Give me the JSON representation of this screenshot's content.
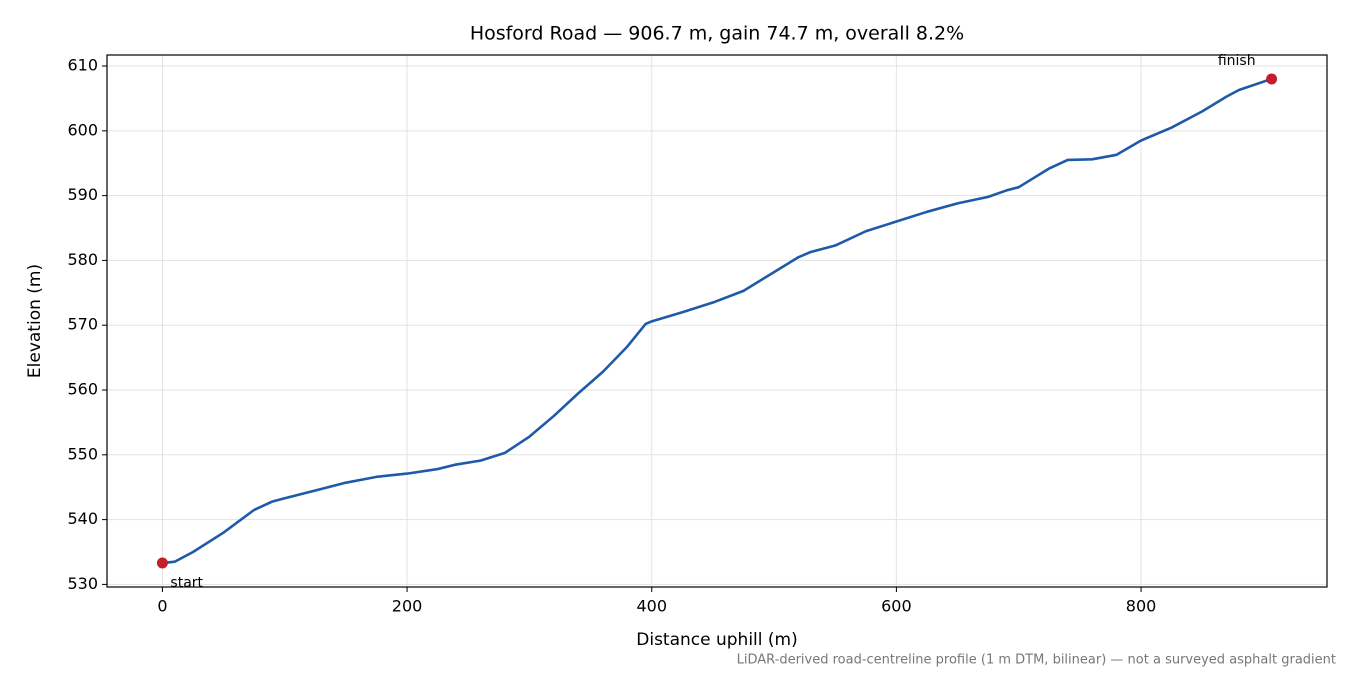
{
  "chart_data": {
    "type": "line",
    "title": "Hosford Road — 906.7 m, gain 74.7 m, overall 8.2%",
    "xlabel": "Distance uphill (m)",
    "ylabel": "Elevation (m)",
    "footnote": "LiDAR-derived road-centreline profile (1 m DTM, bilinear) — not a surveyed asphalt gradient",
    "x": [
      0,
      10,
      25,
      50,
      75,
      90,
      100,
      125,
      150,
      175,
      200,
      225,
      240,
      260,
      280,
      300,
      320,
      340,
      360,
      380,
      395,
      400,
      425,
      450,
      475,
      500,
      520,
      530,
      550,
      575,
      600,
      625,
      650,
      675,
      690,
      700,
      725,
      740,
      760,
      780,
      800,
      825,
      850,
      870,
      880,
      906.7
    ],
    "values": [
      533.3,
      533.5,
      535,
      538,
      541.5,
      542.8,
      543.3,
      544.5,
      545.7,
      546.6,
      547.1,
      547.8,
      548.5,
      549.1,
      550.3,
      552.8,
      556,
      559.5,
      562.8,
      566.7,
      570.2,
      570.6,
      572,
      573.5,
      575.3,
      578.2,
      580.5,
      581.3,
      582.3,
      584.5,
      586,
      587.5,
      588.8,
      589.8,
      590.8,
      591.3,
      594.2,
      595.5,
      595.6,
      596.3,
      598.5,
      600.5,
      603,
      605.3,
      606.3,
      608.0
    ],
    "color": "#1f5aa8",
    "marker_color": "#c41e2a",
    "annotations": [
      {
        "text": "start",
        "index": 0
      },
      {
        "text": "finish",
        "index": 45
      }
    ],
    "xlim": [
      -45.3,
      952.0
    ],
    "ylim": [
      529.6,
      611.7
    ],
    "xticks": [
      0,
      200,
      400,
      600,
      800
    ],
    "yticks": [
      530,
      540,
      550,
      560,
      570,
      580,
      590,
      600,
      610
    ],
    "grid": true
  }
}
